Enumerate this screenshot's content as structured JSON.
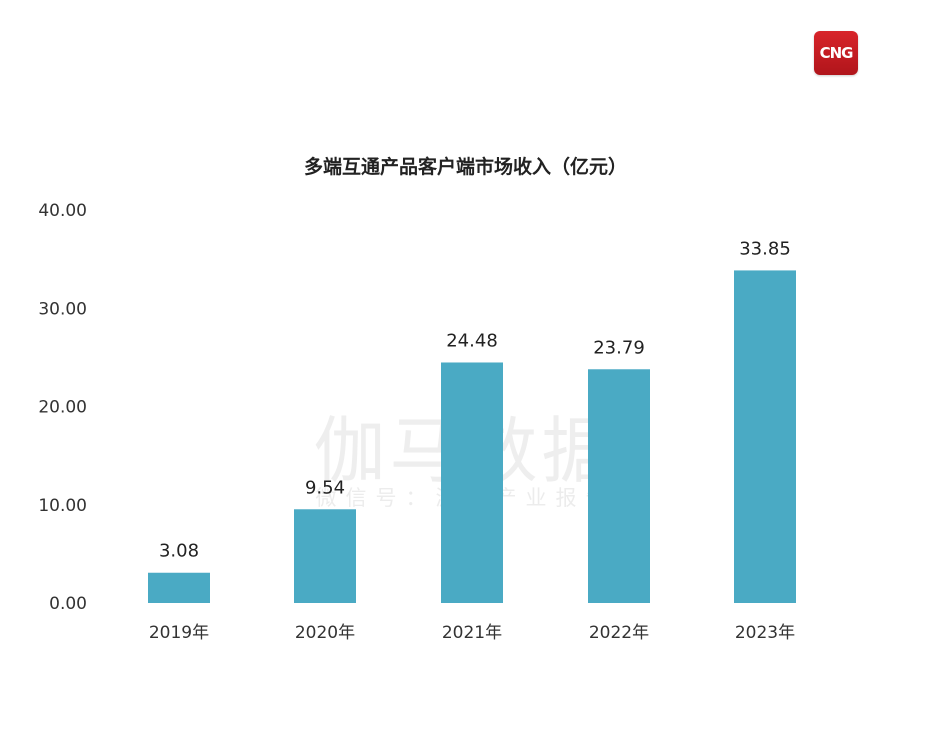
{
  "brand": {
    "logo_text": "CNG"
  },
  "watermark": {
    "main": "伽马数据",
    "sub": "微信号：游戏产业报告"
  },
  "chart_data": {
    "type": "bar",
    "title": "多端互通产品客户端市场收入（亿元）",
    "categories": [
      "2019年",
      "2020年",
      "2021年",
      "2022年",
      "2023年"
    ],
    "values": [
      3.08,
      9.54,
      24.48,
      23.79,
      33.85
    ],
    "value_labels": [
      "3.08",
      "9.54",
      "24.48",
      "23.79",
      "33.85"
    ],
    "yticks": [
      "0.00",
      "10.00",
      "20.00",
      "30.00",
      "40.00"
    ],
    "ylim": [
      0,
      40
    ],
    "grid": false,
    "bar_color": "#4aaac4"
  }
}
